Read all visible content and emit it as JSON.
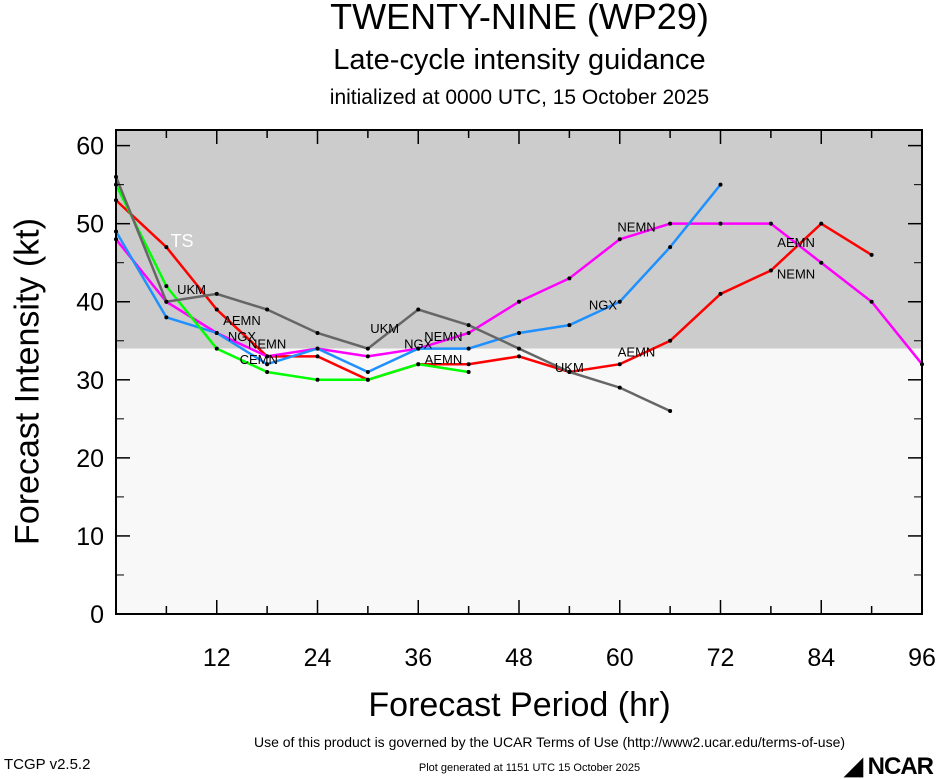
{
  "title": "TWENTY-NINE (WP29)",
  "subtitle": "Late-cycle intensity guidance",
  "init": "initialized at 0000 UTC, 15 October 2025",
  "footer": {
    "terms": "Use of this product is governed by the UCAR Terms of Use (http://www2.ucar.edu/terms-of-use)",
    "generated": "Plot generated at 1151 UTC   15 October 2025",
    "version": "TCGP v2.5.2",
    "logo": "NCAR"
  },
  "chart_data": {
    "type": "line",
    "xlabel": "Forecast Period (hr)",
    "ylabel": "Forecast Intensity (kt)",
    "xlim": [
      0,
      96
    ],
    "ylim": [
      0,
      62
    ],
    "xticks": [
      12,
      24,
      36,
      48,
      60,
      72,
      84,
      96
    ],
    "yticks": [
      0,
      10,
      20,
      30,
      40,
      50,
      60
    ],
    "shading": {
      "threshold_kt": 34,
      "label": "TS",
      "above_color": "#cccccc",
      "below_color": "#f8f8f8"
    },
    "legend": "inline labels",
    "series": [
      {
        "name": "AEMN",
        "color": "#ff0000",
        "x": [
          0,
          6,
          12,
          18,
          24,
          30,
          36,
          42,
          48,
          54,
          60,
          66,
          72,
          78,
          84,
          90
        ],
        "y": [
          53,
          47,
          39,
          33,
          33,
          30,
          32,
          32,
          33,
          31,
          32,
          35,
          41,
          44,
          50,
          46
        ]
      },
      {
        "name": "NEMN",
        "color": "#ff00ff",
        "x": [
          0,
          6,
          12,
          18,
          24,
          30,
          36,
          42,
          48,
          54,
          60,
          66,
          72,
          78,
          84,
          90,
          96
        ],
        "y": [
          48,
          40,
          36,
          33,
          34,
          33,
          34,
          36,
          40,
          43,
          48,
          50,
          50,
          50,
          45,
          40,
          32
        ]
      },
      {
        "name": "NGX",
        "color": "#1e90ff",
        "x": [
          0,
          6,
          12,
          18,
          24,
          30,
          36,
          42,
          48,
          54,
          60,
          66,
          72
        ],
        "y": [
          49,
          38,
          36,
          32,
          34,
          31,
          34,
          34,
          36,
          37,
          40,
          47,
          55
        ]
      },
      {
        "name": "CEMN",
        "color": "#00ff00",
        "x": [
          0,
          6,
          12,
          18,
          24,
          30,
          36,
          42
        ],
        "y": [
          55,
          42,
          34,
          31,
          30,
          30,
          32,
          31
        ]
      },
      {
        "name": "UKM",
        "color": "#666666",
        "x": [
          0,
          6,
          12,
          18,
          24,
          30,
          36,
          42,
          48,
          54,
          60,
          66
        ],
        "y": [
          56,
          40,
          41,
          39,
          36,
          34,
          39,
          37,
          34,
          31,
          29,
          26
        ]
      }
    ],
    "labels": [
      {
        "series": "UKM",
        "x": 9,
        "y": 41
      },
      {
        "series": "UKM",
        "x": 32,
        "y": 36
      },
      {
        "series": "UKM",
        "x": 54,
        "y": 31
      },
      {
        "series": "AEMN",
        "x": 15,
        "y": 37
      },
      {
        "series": "AEMN",
        "x": 39,
        "y": 32
      },
      {
        "series": "AEMN",
        "x": 62,
        "y": 33
      },
      {
        "series": "AEMN",
        "x": 81,
        "y": 47
      },
      {
        "series": "NEMN",
        "x": 18,
        "y": 34
      },
      {
        "series": "NEMN",
        "x": 39,
        "y": 35
      },
      {
        "series": "NEMN",
        "x": 62,
        "y": 49
      },
      {
        "series": "NEMN",
        "x": 81,
        "y": 43
      },
      {
        "series": "NGX",
        "x": 15,
        "y": 35
      },
      {
        "series": "NGX",
        "x": 36,
        "y": 34
      },
      {
        "series": "NGX",
        "x": 58,
        "y": 39
      },
      {
        "series": "CEMN",
        "x": 17,
        "y": 32
      }
    ]
  }
}
